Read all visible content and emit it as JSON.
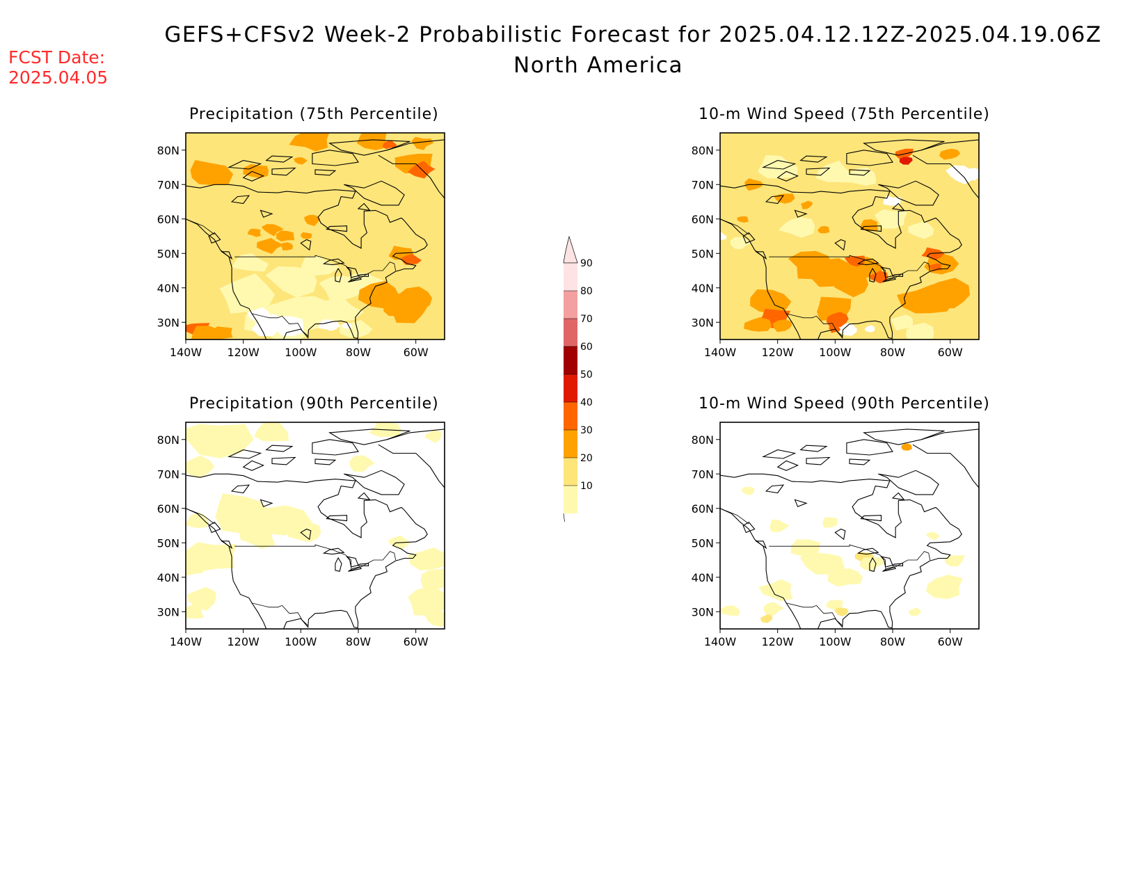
{
  "header": {
    "title": "GEFS+CFSv2 Week-2 Probabilistic Forecast for 2025.04.12.12Z-2025.04.19.06Z",
    "subtitle": "North America",
    "fcst_label": "FCST Date:",
    "fcst_date": "2025.04.05"
  },
  "panels": [
    {
      "title": "Precipitation (75th Percentile)",
      "variable": "precipitation",
      "level": "75"
    },
    {
      "title": "10-m Wind Speed (75th Percentile)",
      "variable": "wind",
      "level": "75"
    },
    {
      "title": "Precipitation (90th Percentile)",
      "variable": "precipitation",
      "level": "90"
    },
    {
      "title": "10-m Wind Speed (90th Percentile)",
      "variable": "wind",
      "level": "90"
    }
  ],
  "axes": {
    "lat_labels": [
      "80N",
      "70N",
      "60N",
      "50N",
      "40N",
      "30N"
    ],
    "lon_labels": [
      "140W",
      "120W",
      "100W",
      "80W",
      "60W"
    ]
  },
  "colorbar": {
    "levels": [
      "10",
      "20",
      "30",
      "40",
      "50",
      "60",
      "70",
      "80",
      "90"
    ],
    "colors": [
      "#fff9b0",
      "#fde57a",
      "#ffa200",
      "#ff6600",
      "#e01a00",
      "#a00000",
      "#e06666",
      "#f4a0a0",
      "#fde3e3"
    ]
  }
}
